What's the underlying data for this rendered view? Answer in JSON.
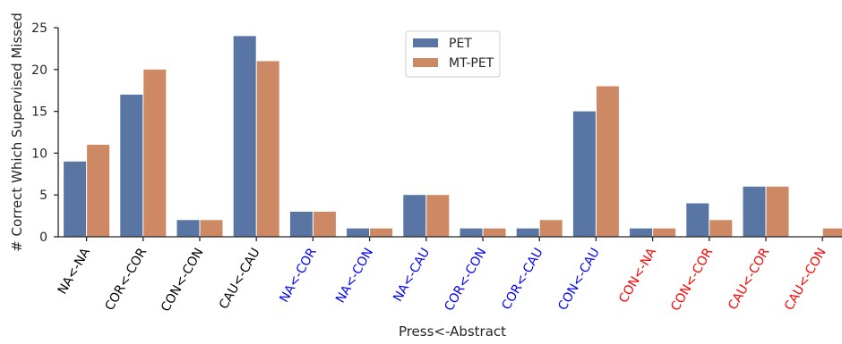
{
  "chart_data": {
    "type": "bar",
    "xlabel": "Press<-Abstract",
    "ylabel": "# Correct Which Supervised Missed",
    "ylim": [
      0,
      25
    ],
    "yticks": [
      0,
      5,
      10,
      15,
      20,
      25
    ],
    "grid": false,
    "legend_position": "top-center",
    "categories": [
      "NA<-NA",
      "COR<-COR",
      "CON<-CON",
      "CAU<-CAU",
      "NA<-COR",
      "NA<-CON",
      "NA<-CAU",
      "COR<-CON",
      "COR<-CAU",
      "CON<-CAU",
      "CON<-NA",
      "CON<-COR",
      "CAU<-COR",
      "CAU<-CON"
    ],
    "category_colors": [
      "#000000",
      "#000000",
      "#000000",
      "#000000",
      "#0000ff",
      "#0000ff",
      "#0000ff",
      "#0000ff",
      "#0000ff",
      "#0000ff",
      "#ff0000",
      "#ff0000",
      "#ff0000",
      "#ff0000"
    ],
    "series": [
      {
        "name": "PET",
        "color": "#5975a4",
        "values": [
          9,
          17,
          2,
          24,
          3,
          1,
          5,
          1,
          1,
          15,
          1,
          4,
          6,
          0
        ]
      },
      {
        "name": "MT-PET",
        "color": "#cc8963",
        "values": [
          11,
          20,
          2,
          21,
          3,
          1,
          5,
          1,
          2,
          18,
          1,
          2,
          6,
          1
        ]
      }
    ]
  }
}
